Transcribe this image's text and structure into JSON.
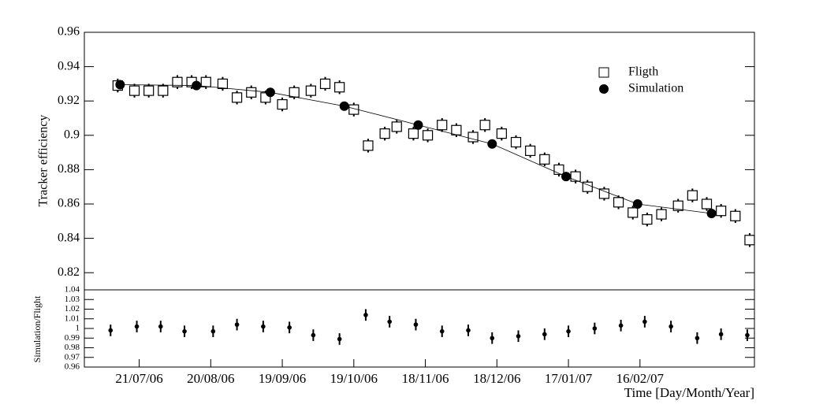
{
  "chart_data": [
    {
      "type": "scatter",
      "ylabel": "Tracker efficiency",
      "xlim": [
        "2006-06-28",
        "2007-04-05"
      ],
      "ylim": [
        0.81,
        0.96
      ],
      "yticks": [
        0.82,
        0.84,
        0.86,
        0.88,
        0.9,
        0.92,
        0.94,
        0.96
      ],
      "legend": "upper right",
      "series": [
        {
          "name": "Fligth",
          "color": "#000000",
          "marker": "square-open",
          "line": false,
          "x": [
            "2006-07-12",
            "2006-07-19",
            "2006-07-25",
            "2006-07-31",
            "2006-08-06",
            "2006-08-12",
            "2006-08-18",
            "2006-08-25",
            "2006-08-31",
            "2006-09-06",
            "2006-09-12",
            "2006-09-19",
            "2006-09-24",
            "2006-10-01",
            "2006-10-07",
            "2006-10-13",
            "2006-10-19",
            "2006-10-25",
            "2006-11-01",
            "2006-11-06",
            "2006-11-13",
            "2006-11-19",
            "2006-11-25",
            "2006-12-01",
            "2006-12-08",
            "2006-12-13",
            "2006-12-20",
            "2006-12-26",
            "2007-01-01",
            "2007-01-07",
            "2007-01-13",
            "2007-01-20",
            "2007-01-25",
            "2007-02-01",
            "2007-02-07",
            "2007-02-13",
            "2007-02-19",
            "2007-02-25",
            "2007-03-04",
            "2007-03-10",
            "2007-03-16",
            "2007-03-22",
            "2007-03-28",
            "2007-04-03"
          ],
          "values": [
            0.929,
            0.926,
            0.926,
            0.926,
            0.931,
            0.931,
            0.931,
            0.93,
            0.922,
            0.925,
            0.922,
            0.918,
            0.925,
            0.926,
            0.93,
            0.928,
            0.915,
            0.894,
            0.901,
            0.905,
            0.901,
            0.9,
            0.906,
            0.903,
            0.899,
            0.906,
            0.901,
            0.896,
            0.891,
            0.886,
            0.88,
            0.876,
            0.87,
            0.866,
            0.861,
            0.855,
            0.851,
            0.854,
            0.859,
            0.865,
            0.86,
            0.856,
            0.853,
            0.839
          ],
          "errors": [
            0.004,
            0.004,
            0.004,
            0.004,
            0.004,
            0.004,
            0.004,
            0.004,
            0.004,
            0.004,
            0.004,
            0.004,
            0.004,
            0.004,
            0.004,
            0.004,
            0.004,
            0.004,
            0.004,
            0.004,
            0.004,
            0.004,
            0.004,
            0.004,
            0.004,
            0.004,
            0.004,
            0.004,
            0.004,
            0.004,
            0.004,
            0.004,
            0.004,
            0.004,
            0.004,
            0.004,
            0.004,
            0.004,
            0.004,
            0.004,
            0.004,
            0.004,
            0.004,
            0.004
          ]
        },
        {
          "name": "Simulation",
          "color": "#000000",
          "marker": "circle",
          "line": true,
          "x": [
            "2006-07-13",
            "2006-08-14",
            "2006-09-14",
            "2006-10-15",
            "2006-11-15",
            "2006-12-16",
            "2007-01-16",
            "2007-02-15",
            "2007-03-18"
          ],
          "values": [
            0.9295,
            0.929,
            0.925,
            0.917,
            0.906,
            0.895,
            0.876,
            0.86,
            0.8545
          ]
        }
      ]
    },
    {
      "type": "scatter",
      "ylabel": "Simulation/Flight",
      "xlabel": "Time [Day/Month/Year]",
      "xlim": [
        "2006-06-28",
        "2007-04-05"
      ],
      "xticks": [
        {
          "value": "2006-07-21",
          "label": "21/07/06"
        },
        {
          "value": "2006-08-20",
          "label": "20/08/06"
        },
        {
          "value": "2006-09-19",
          "label": "19/09/06"
        },
        {
          "value": "2006-10-19",
          "label": "19/10/06"
        },
        {
          "value": "2006-11-18",
          "label": "18/11/06"
        },
        {
          "value": "2006-12-18",
          "label": "18/12/06"
        },
        {
          "value": "2007-01-17",
          "label": "17/01/07"
        },
        {
          "value": "2007-02-16",
          "label": "16/02/07"
        }
      ],
      "ylim": [
        0.96,
        1.04
      ],
      "yticks": [
        0.96,
        0.97,
        0.98,
        0.99,
        1,
        1.01,
        1.02,
        1.03,
        1.04
      ],
      "color": "#000000",
      "x": [
        "2006-07-09",
        "2006-07-20",
        "2006-07-30",
        "2006-08-09",
        "2006-08-21",
        "2006-08-31",
        "2006-09-11",
        "2006-09-22",
        "2006-10-02",
        "2006-10-13",
        "2006-10-24",
        "2006-11-03",
        "2006-11-14",
        "2006-11-25",
        "2006-12-06",
        "2006-12-16",
        "2006-12-27",
        "2007-01-07",
        "2007-01-17",
        "2007-01-28",
        "2007-02-08",
        "2007-02-18",
        "2007-03-01",
        "2007-03-12",
        "2007-03-22",
        "2007-04-02"
      ],
      "values": [
        0.998,
        1.002,
        1.002,
        0.997,
        0.997,
        1.004,
        1.002,
        1.001,
        0.993,
        0.989,
        1.014,
        1.007,
        1.004,
        0.997,
        0.998,
        0.99,
        0.992,
        0.994,
        0.997,
        1.0,
        1.003,
        1.007,
        1.002,
        0.99,
        0.994,
        0.993
      ],
      "errors": [
        0.006,
        0.006,
        0.006,
        0.006,
        0.006,
        0.006,
        0.006,
        0.006,
        0.006,
        0.006,
        0.006,
        0.006,
        0.006,
        0.006,
        0.006,
        0.006,
        0.006,
        0.006,
        0.006,
        0.006,
        0.006,
        0.006,
        0.006,
        0.006,
        0.006,
        0.006
      ]
    }
  ]
}
